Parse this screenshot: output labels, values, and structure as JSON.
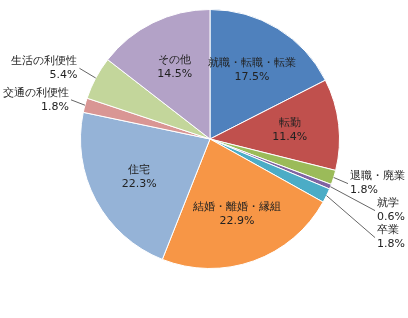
{
  "chart_data": {
    "type": "pie",
    "categories": [
      "就職・転職・転業",
      "転勤",
      "退職・廃業",
      "就学",
      "卒業",
      "結婚・離婚・縁組",
      "住宅",
      "交通の利便性",
      "生活の利便性",
      "その他"
    ],
    "values": [
      17.5,
      11.4,
      1.8,
      0.6,
      1.8,
      22.9,
      22.3,
      1.8,
      5.4,
      14.5
    ],
    "value_labels": [
      "17.5%",
      "11.4%",
      "1.8%",
      "0.6%",
      "1.8%",
      "22.9%",
      "22.3%",
      "1.8%",
      "5.4%",
      "14.5%"
    ],
    "colors": [
      "#4f81bd",
      "#c0504d",
      "#9bbb59",
      "#8064a2",
      "#4bacc6",
      "#f79646",
      "#95b3d7",
      "#d99694",
      "#c3d69b",
      "#b3a2c7"
    ],
    "data_labels": true
  }
}
